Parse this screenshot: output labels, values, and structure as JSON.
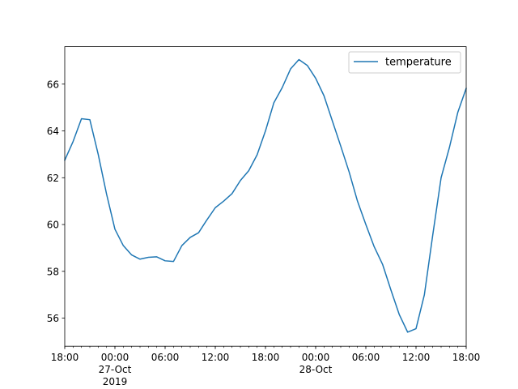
{
  "chart_data": {
    "type": "line",
    "title": "",
    "xlabel": "",
    "ylabel": "",
    "x_start": "2019-10-26 18:00",
    "x_step_hours": 1,
    "xlim": [
      "2019-10-26 18:00",
      "2019-10-28 18:00"
    ],
    "ylim": [
      54.8,
      67.6
    ],
    "grid": false,
    "legend_position": "top-right",
    "x_ticks": [
      {
        "x": "2019-10-26 18:00",
        "lines": [
          "18:00"
        ]
      },
      {
        "x": "2019-10-27 00:00",
        "lines": [
          "00:00",
          "27-Oct",
          "2019"
        ]
      },
      {
        "x": "2019-10-27 06:00",
        "lines": [
          "06:00"
        ]
      },
      {
        "x": "2019-10-27 12:00",
        "lines": [
          "12:00"
        ]
      },
      {
        "x": "2019-10-27 18:00",
        "lines": [
          "18:00"
        ]
      },
      {
        "x": "2019-10-28 00:00",
        "lines": [
          "00:00",
          "28-Oct"
        ]
      },
      {
        "x": "2019-10-28 06:00",
        "lines": [
          "06:00"
        ]
      },
      {
        "x": "2019-10-28 12:00",
        "lines": [
          "12:00"
        ]
      },
      {
        "x": "2019-10-28 18:00",
        "lines": [
          "18:00"
        ]
      }
    ],
    "y_ticks": [
      56,
      58,
      60,
      62,
      64,
      66
    ],
    "series": [
      {
        "name": "temperature",
        "color": "#1f77b4",
        "values": [
          62.75,
          63.55,
          64.52,
          64.48,
          63.0,
          61.3,
          59.8,
          59.1,
          58.7,
          58.52,
          58.6,
          58.62,
          58.45,
          58.42,
          59.1,
          59.45,
          59.65,
          60.2,
          60.72,
          61.0,
          61.32,
          61.88,
          62.3,
          62.98,
          64.0,
          65.2,
          65.85,
          66.65,
          67.05,
          66.8,
          66.25,
          65.5,
          64.42,
          63.35,
          62.25,
          61.0,
          60.0,
          59.05,
          58.3,
          57.2,
          56.15,
          55.4,
          55.55,
          57.0,
          59.55,
          62.0,
          63.3,
          64.8,
          65.82
        ]
      }
    ]
  }
}
